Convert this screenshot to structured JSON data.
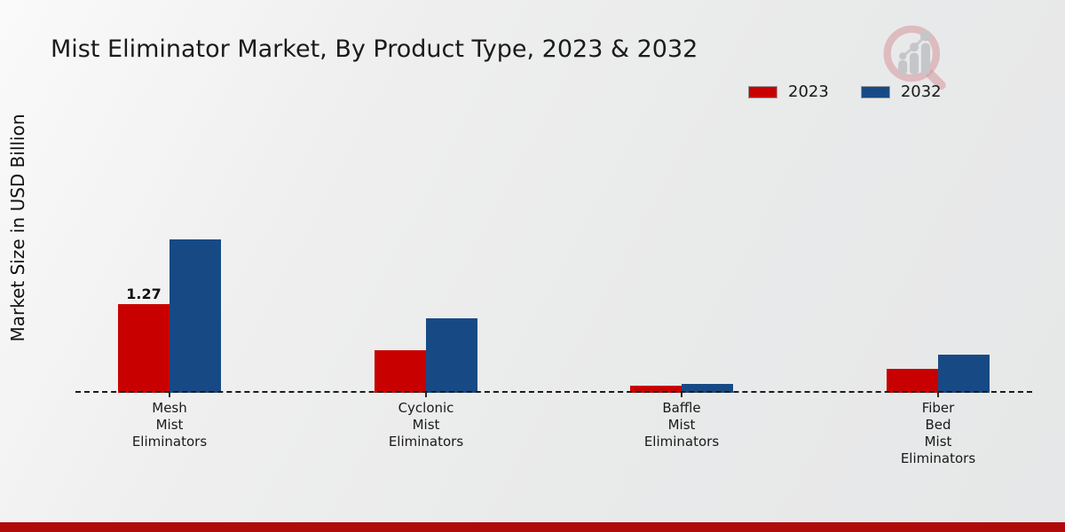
{
  "page": {
    "title": "Mist Eliminator Market, By Product Type, 2023 & 2032",
    "ylabel": "Market Size in USD Billion",
    "logo_icon": "bar-chart-magnifier-icon"
  },
  "legend": {
    "position": "top-right",
    "items": [
      {
        "label": "2023",
        "color": "#c80000"
      },
      {
        "label": "2032",
        "color": "#174a85"
      }
    ]
  },
  "chart_data": {
    "type": "bar",
    "title": "Mist Eliminator Market, By Product Type, 2023 & 2032",
    "xlabel": "",
    "ylabel": "Market Size in USD Billion",
    "categories": [
      "Mesh Mist Eliminators",
      "Cyclonic Mist Eliminators",
      "Baffle Mist Eliminators",
      "Fiber Bed Mist Eliminators"
    ],
    "category_labels_multiline": [
      "Mesh\nMist\nEliminators",
      "Cyclonic\nMist\nEliminators",
      "Baffle\nMist\nEliminators",
      "Fiber\nBed\nMist\nEliminators"
    ],
    "series": [
      {
        "name": "2023",
        "color": "#c80000",
        "values": [
          1.27,
          0.61,
          0.1,
          0.34
        ],
        "data_labels": [
          "1.27",
          "",
          "",
          ""
        ]
      },
      {
        "name": "2032",
        "color": "#174a85",
        "values": [
          2.19,
          1.06,
          0.13,
          0.55
        ],
        "data_labels": [
          "",
          "",
          "",
          ""
        ]
      }
    ],
    "ylim": [
      0,
      2.5
    ],
    "grid": false,
    "y_axis_ticks_visible": false,
    "baseline_style": "dashed",
    "legend_position": "top-right"
  },
  "colors": {
    "bottom_accent_bar": "#b00b0b",
    "axis_line": "#1c1c1c",
    "background_light": "#fafafa",
    "background_dark": "#e6e7e8"
  }
}
